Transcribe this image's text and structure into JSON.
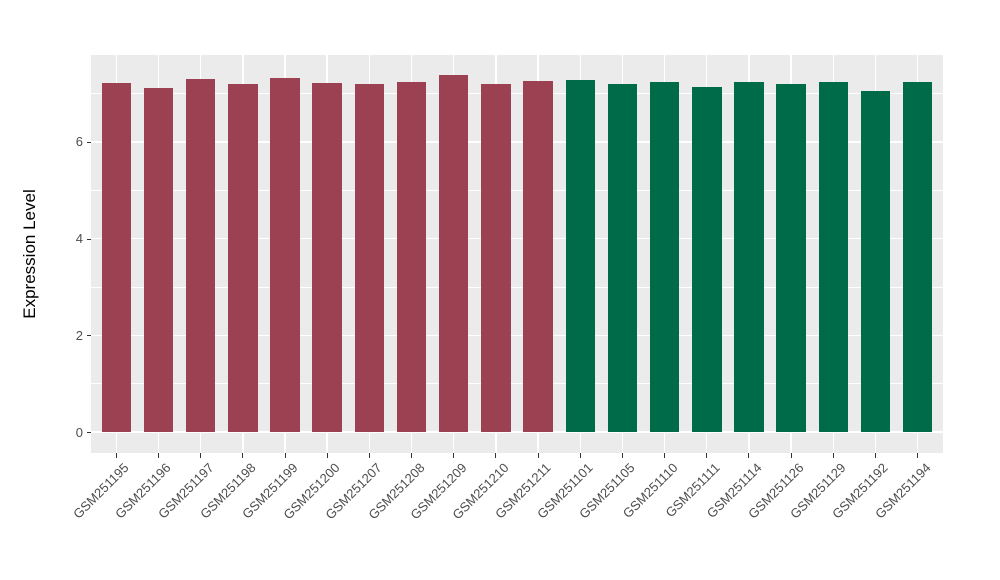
{
  "figure": {
    "background": "#FFFFFF"
  },
  "chart_data": {
    "type": "bar",
    "title": "",
    "xlabel": "",
    "ylabel": "Expression Level",
    "categories": [
      "GSM251195",
      "GSM251196",
      "GSM251197",
      "GSM251198",
      "GSM251199",
      "GSM251200",
      "GSM251207",
      "GSM251208",
      "GSM251209",
      "GSM251210",
      "GSM251211",
      "GSM251101",
      "GSM251105",
      "GSM251110",
      "GSM251111",
      "GSM251114",
      "GSM251126",
      "GSM251129",
      "GSM251192",
      "GSM251194"
    ],
    "values": [
      7.22,
      7.11,
      7.3,
      7.2,
      7.32,
      7.22,
      7.19,
      7.24,
      7.39,
      7.19,
      7.25,
      7.29,
      7.2,
      7.24,
      7.13,
      7.24,
      7.2,
      7.24,
      7.05,
      7.24
    ],
    "group_of_bar": [
      0,
      0,
      0,
      0,
      0,
      0,
      0,
      0,
      0,
      0,
      0,
      1,
      1,
      1,
      1,
      1,
      1,
      1,
      1,
      1
    ],
    "group_colors": [
      "#9B4151",
      "#006B48"
    ],
    "y_ticks": [
      0,
      2,
      4,
      6
    ],
    "y_minor_ticks": [
      1,
      3,
      5,
      7
    ],
    "ylim": [
      -0.39,
      7.79
    ],
    "bar_width_fraction": 0.7,
    "grid": true,
    "legend_position": "none",
    "panel_bg": "#EBEBEB",
    "grid_color": "#FFFFFF",
    "tick_color": "#333333",
    "axis_text_color": "#4D4D4D",
    "axis_title_color": "#000000"
  }
}
